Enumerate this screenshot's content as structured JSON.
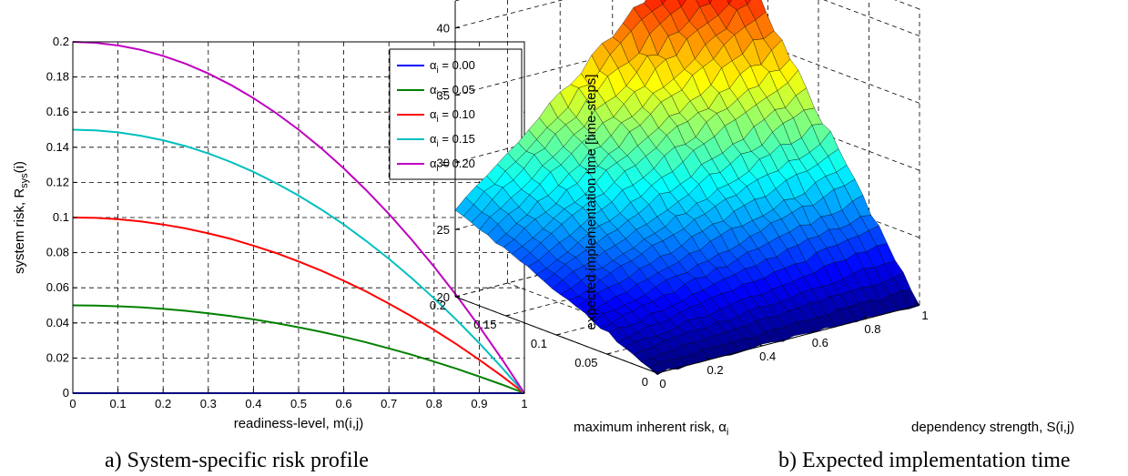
{
  "chart_data": [
    {
      "type": "line",
      "caption": "a)  System-specific risk profile",
      "xlabel": "readiness-level, m(i,j)",
      "ylabel_main": "system risk, R",
      "ylabel_sub": "sys",
      "ylabel_tail": "(i)",
      "xlim": [
        0,
        1
      ],
      "ylim": [
        0,
        0.2
      ],
      "grid": true,
      "legend_placement": "top-right",
      "x_ticks": [
        "0",
        "0.1",
        "0.2",
        "0.3",
        "0.4",
        "0.5",
        "0.6",
        "0.7",
        "0.8",
        "0.9",
        "1"
      ],
      "y_ticks": [
        "0",
        "0.02",
        "0.04",
        "0.06",
        "0.08",
        "0.1",
        "0.12",
        "0.14",
        "0.16",
        "0.18",
        "0.2"
      ],
      "x": [
        0,
        0.05,
        0.1,
        0.15,
        0.2,
        0.25,
        0.3,
        0.35,
        0.4,
        0.45,
        0.5,
        0.55,
        0.6,
        0.65,
        0.7,
        0.75,
        0.8,
        0.85,
        0.9,
        0.95,
        1.0
      ],
      "series": [
        {
          "name": "α",
          "sub": "i",
          "value_label": " = 0.00",
          "color": "#0000ff",
          "values": [
            0,
            0,
            0,
            0,
            0,
            0,
            0,
            0,
            0,
            0,
            0,
            0,
            0,
            0,
            0,
            0,
            0,
            0,
            0,
            0,
            0
          ]
        },
        {
          "name": "α",
          "sub": "i",
          "value_label": " = 0.05",
          "color": "#008000",
          "values": [
            0.05,
            0.0499,
            0.0495,
            0.0489,
            0.048,
            0.0469,
            0.0455,
            0.0439,
            0.042,
            0.0399,
            0.0375,
            0.0349,
            0.032,
            0.0289,
            0.0255,
            0.0219,
            0.018,
            0.0139,
            0.0095,
            0.0049,
            0
          ]
        },
        {
          "name": "α",
          "sub": "i",
          "value_label": " = 0.10",
          "color": "#ff0000",
          "values": [
            0.1,
            0.0998,
            0.099,
            0.0978,
            0.096,
            0.0938,
            0.091,
            0.0878,
            0.084,
            0.0798,
            0.075,
            0.0698,
            0.064,
            0.0578,
            0.051,
            0.0438,
            0.036,
            0.0278,
            0.019,
            0.0098,
            0
          ]
        },
        {
          "name": "α",
          "sub": "i",
          "value_label": " = 0.15",
          "color": "#00bfbf",
          "values": [
            0.15,
            0.1496,
            0.1485,
            0.1466,
            0.144,
            0.1406,
            0.1365,
            0.1316,
            0.126,
            0.1196,
            0.1125,
            0.1046,
            0.096,
            0.0866,
            0.0765,
            0.0656,
            0.054,
            0.0416,
            0.0285,
            0.0146,
            0
          ]
        },
        {
          "name": "α",
          "sub": "i",
          "value_label": " = 0.20",
          "color": "#bf00bf",
          "values": [
            0.2,
            0.1995,
            0.198,
            0.1955,
            0.192,
            0.1875,
            0.182,
            0.1755,
            0.168,
            0.1595,
            0.15,
            0.1395,
            0.128,
            0.1155,
            0.102,
            0.0875,
            0.072,
            0.0555,
            0.038,
            0.0195,
            0
          ]
        }
      ]
    },
    {
      "type": "surface",
      "caption": "b)  Expected implementation time",
      "zlabel": "expected implementation time [time-steps]",
      "xlabel": "dependency strength, S(i,j)",
      "ylabel_main": "maximum inherent risk, α",
      "ylabel_sub": "i",
      "xlim": [
        0,
        1
      ],
      "ylim": [
        0,
        0.2
      ],
      "zlim": [
        20,
        42
      ],
      "x_ticks": [
        "0",
        "0.2",
        "0.4",
        "0.6",
        "0.8",
        "1"
      ],
      "y_ticks": [
        "0",
        "0.05",
        "0.1",
        "0.15",
        "0.2"
      ],
      "z_ticks": [
        "20",
        "25",
        "30",
        "35",
        "40"
      ],
      "colormap": "jet",
      "corner_values": {
        "s0_a0": 20,
        "s1_a0": 20,
        "s0_a02": 26.5,
        "s1_a02": 43
      }
    }
  ]
}
